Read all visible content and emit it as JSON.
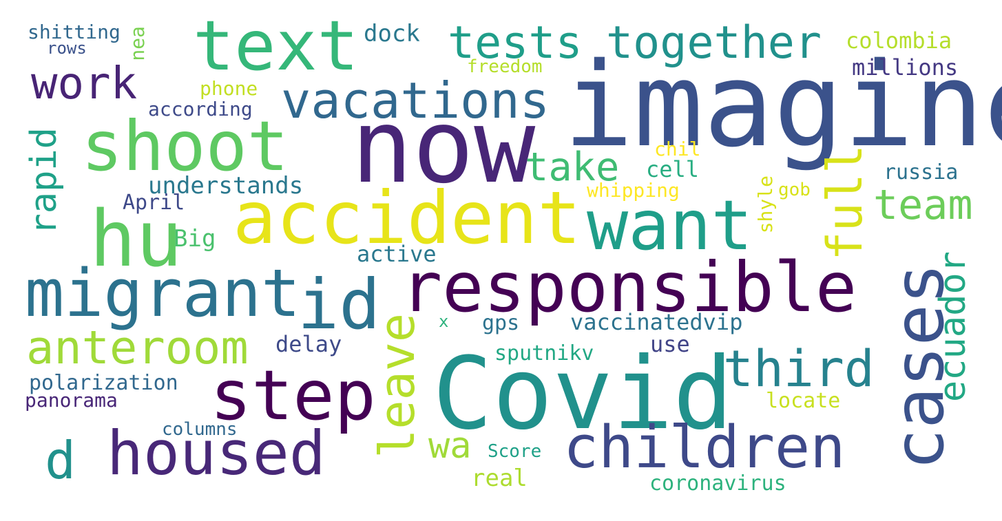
{
  "words": [
    {
      "text": "imagine",
      "color": "#3b528b",
      "orientation": "horizontal"
    },
    {
      "text": "now",
      "color": "#482677",
      "orientation": "horizontal"
    },
    {
      "text": "Covid",
      "color": "#21918c",
      "orientation": "horizontal"
    },
    {
      "text": "responsible",
      "color": "#440154",
      "orientation": "horizontal"
    },
    {
      "text": "accident",
      "color": "#e7e419",
      "orientation": "horizontal"
    },
    {
      "text": "text",
      "color": "#35b779",
      "orientation": "horizontal"
    },
    {
      "text": "shoot",
      "color": "#5ec962",
      "orientation": "horizontal"
    },
    {
      "text": "hu",
      "color": "#5ec962",
      "orientation": "horizontal"
    },
    {
      "text": "want",
      "color": "#1f9e89",
      "orientation": "horizontal"
    },
    {
      "text": "migrant",
      "color": "#2c728e",
      "orientation": "horizontal"
    },
    {
      "text": "id",
      "color": "#2c728e",
      "orientation": "horizontal"
    },
    {
      "text": "step",
      "color": "#440154",
      "orientation": "horizontal"
    },
    {
      "text": "children",
      "color": "#3e4989",
      "orientation": "horizontal"
    },
    {
      "text": "housed",
      "color": "#482878",
      "orientation": "horizontal"
    },
    {
      "text": "cases",
      "color": "#3b528b",
      "orientation": "vertical"
    },
    {
      "text": "vacations",
      "color": "#31688e",
      "orientation": "horizontal"
    },
    {
      "text": "tests",
      "color": "#1f9e89",
      "orientation": "horizontal"
    },
    {
      "text": "together",
      "color": "#21918c",
      "orientation": "horizontal"
    },
    {
      "text": "leave",
      "color": "#b5de2b",
      "orientation": "vertical"
    },
    {
      "text": "anteroom",
      "color": "#a0da39",
      "orientation": "horizontal"
    },
    {
      "text": "third",
      "color": "#26828e",
      "orientation": "horizontal"
    },
    {
      "text": "full",
      "color": "#d8e219",
      "orientation": "vertical"
    },
    {
      "text": "d",
      "color": "#21918c",
      "orientation": "horizontal"
    },
    {
      "text": "work",
      "color": "#482475",
      "orientation": "horizontal"
    },
    {
      "text": "take",
      "color": "#3fbc73",
      "orientation": "horizontal"
    },
    {
      "text": "team",
      "color": "#6ccd5a",
      "orientation": "horizontal"
    },
    {
      "text": "ecuador",
      "color": "#22a884",
      "orientation": "vertical"
    },
    {
      "text": "rapid",
      "color": "#1fa188",
      "orientation": "vertical"
    },
    {
      "text": "wa",
      "color": "#a0da39",
      "orientation": "horizontal"
    },
    {
      "text": "dock",
      "color": "#2a788e",
      "orientation": "horizontal"
    },
    {
      "text": "shitting",
      "color": "#31688e",
      "orientation": "horizontal"
    },
    {
      "text": "rows",
      "color": "#3b528b",
      "orientation": "horizontal"
    },
    {
      "text": "nea",
      "color": "#7ad151",
      "orientation": "vertical"
    },
    {
      "text": "colombia",
      "color": "#b5de2b",
      "orientation": "horizontal"
    },
    {
      "text": "millions",
      "color": "#443983",
      "orientation": "horizontal"
    },
    {
      "text": "freedom",
      "color": "#b5de2b",
      "orientation": "horizontal"
    },
    {
      "text": "phone",
      "color": "#c2df23",
      "orientation": "horizontal"
    },
    {
      "text": "according",
      "color": "#3e4a89",
      "orientation": "horizontal"
    },
    {
      "text": "chil",
      "color": "#fde725",
      "orientation": "horizontal"
    },
    {
      "text": "cell",
      "color": "#27ad81",
      "orientation": "horizontal"
    },
    {
      "text": "understands",
      "color": "#2a788e",
      "orientation": "horizontal"
    },
    {
      "text": "whipping",
      "color": "#fde725",
      "orientation": "horizontal"
    },
    {
      "text": "russia",
      "color": "#2c728e",
      "orientation": "horizontal"
    },
    {
      "text": "gob",
      "color": "#d8e219",
      "orientation": "horizontal"
    },
    {
      "text": "shyle",
      "color": "#d8e219",
      "orientation": "vertical"
    },
    {
      "text": "April",
      "color": "#3e4989",
      "orientation": "horizontal"
    },
    {
      "text": "Big",
      "color": "#4ac16d",
      "orientation": "horizontal"
    },
    {
      "text": "active",
      "color": "#2a788e",
      "orientation": "horizontal"
    },
    {
      "text": "x",
      "color": "#2db27d",
      "orientation": "horizontal"
    },
    {
      "text": "gps",
      "color": "#2c728e",
      "orientation": "horizontal"
    },
    {
      "text": "vaccinatedvip",
      "color": "#2c728e",
      "orientation": "horizontal"
    },
    {
      "text": "delay",
      "color": "#3e4a89",
      "orientation": "horizontal"
    },
    {
      "text": "use",
      "color": "#414487",
      "orientation": "horizontal"
    },
    {
      "text": "sputnikv",
      "color": "#22a884",
      "orientation": "horizontal"
    },
    {
      "text": "polarization",
      "color": "#31688e",
      "orientation": "horizontal"
    },
    {
      "text": "panorama",
      "color": "#482677",
      "orientation": "horizontal"
    },
    {
      "text": "locate",
      "color": "#c8e020",
      "orientation": "horizontal"
    },
    {
      "text": "columns",
      "color": "#31688e",
      "orientation": "horizontal"
    },
    {
      "text": "Score",
      "color": "#1fa188",
      "orientation": "horizontal"
    },
    {
      "text": "real",
      "color": "#addc30",
      "orientation": "horizontal"
    },
    {
      "text": "coronavirus",
      "color": "#2db27d",
      "orientation": "horizontal"
    }
  ]
}
